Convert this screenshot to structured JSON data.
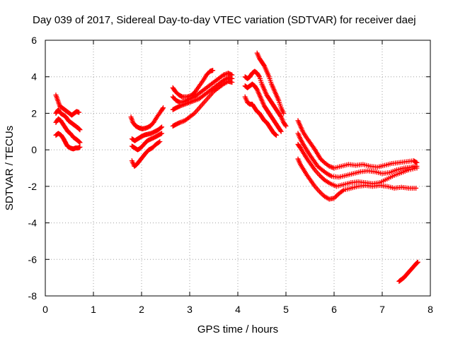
{
  "chart_data": {
    "type": "scatter",
    "title": "Day 039 of 2017, Sidereal Day-to-day VTEC variation (SDTVAR) for receiver daej",
    "xlabel": "GPS time / hours",
    "ylabel": "SDTVAR / TECUs",
    "xlim": [
      0,
      8
    ],
    "ylim": [
      -8,
      6
    ],
    "x_ticks": [
      "0",
      "1",
      "2",
      "3",
      "4",
      "5",
      "6",
      "7",
      "8"
    ],
    "y_ticks": [
      "-8",
      "-6",
      "-4",
      "-2",
      "0",
      "2",
      "4",
      "6"
    ],
    "grid": true,
    "marker": "+",
    "color": "#ff0000",
    "series": [
      {
        "points": [
          [
            0.22,
            3.0
          ],
          [
            0.26,
            2.7
          ],
          [
            0.3,
            2.4
          ],
          [
            0.35,
            2.3
          ],
          [
            0.4,
            2.2
          ],
          [
            0.45,
            2.1
          ],
          [
            0.5,
            2.0
          ],
          [
            0.55,
            1.9
          ],
          [
            0.6,
            2.0
          ],
          [
            0.65,
            2.1
          ],
          [
            0.7,
            2.05
          ]
        ]
      },
      {
        "points": [
          [
            0.22,
            2.0
          ],
          [
            0.27,
            2.2
          ],
          [
            0.32,
            2.0
          ],
          [
            0.38,
            1.9
          ],
          [
            0.43,
            1.8
          ],
          [
            0.48,
            1.6
          ],
          [
            0.53,
            1.5
          ],
          [
            0.58,
            1.4
          ],
          [
            0.63,
            1.3
          ],
          [
            0.68,
            1.2
          ],
          [
            0.72,
            1.1
          ]
        ]
      },
      {
        "points": [
          [
            0.22,
            1.5
          ],
          [
            0.27,
            1.7
          ],
          [
            0.32,
            1.6
          ],
          [
            0.37,
            1.4
          ],
          [
            0.42,
            1.2
          ],
          [
            0.47,
            1.0
          ],
          [
            0.52,
            0.9
          ],
          [
            0.58,
            0.7
          ],
          [
            0.63,
            0.6
          ],
          [
            0.68,
            0.5
          ],
          [
            0.72,
            0.4
          ]
        ]
      },
      {
        "points": [
          [
            0.22,
            0.8
          ],
          [
            0.27,
            0.9
          ],
          [
            0.33,
            0.8
          ],
          [
            0.38,
            0.6
          ],
          [
            0.42,
            0.4
          ],
          [
            0.46,
            0.2
          ],
          [
            0.52,
            0.1
          ],
          [
            0.58,
            0.05
          ],
          [
            0.63,
            0.1
          ],
          [
            0.68,
            0.1
          ],
          [
            0.72,
            0.15
          ]
        ]
      },
      {
        "points": [
          [
            1.78,
            1.8
          ],
          [
            1.82,
            1.5
          ],
          [
            1.88,
            1.3
          ],
          [
            1.95,
            1.2
          ],
          [
            2.02,
            1.15
          ],
          [
            2.1,
            1.2
          ],
          [
            2.18,
            1.3
          ],
          [
            2.25,
            1.5
          ],
          [
            2.32,
            1.8
          ],
          [
            2.4,
            2.1
          ],
          [
            2.45,
            2.3
          ]
        ]
      },
      {
        "points": [
          [
            1.8,
            0.6
          ],
          [
            1.86,
            0.5
          ],
          [
            1.92,
            0.6
          ],
          [
            1.98,
            0.7
          ],
          [
            2.05,
            0.8
          ],
          [
            2.12,
            0.85
          ],
          [
            2.2,
            0.9
          ],
          [
            2.28,
            1.0
          ],
          [
            2.35,
            1.1
          ],
          [
            2.42,
            1.25
          ]
        ]
      },
      {
        "points": [
          [
            1.8,
            0.2
          ],
          [
            1.86,
            0.1
          ],
          [
            1.92,
            0.0
          ],
          [
            1.98,
            0.1
          ],
          [
            2.05,
            0.3
          ],
          [
            2.12,
            0.5
          ],
          [
            2.2,
            0.6
          ],
          [
            2.28,
            0.7
          ],
          [
            2.35,
            0.8
          ],
          [
            2.42,
            0.9
          ]
        ]
      },
      {
        "points": [
          [
            1.8,
            -0.6
          ],
          [
            1.85,
            -0.9
          ],
          [
            1.9,
            -0.8
          ],
          [
            1.96,
            -0.6
          ],
          [
            2.02,
            -0.4
          ],
          [
            2.08,
            -0.2
          ],
          [
            2.15,
            0.0
          ],
          [
            2.22,
            0.1
          ],
          [
            2.3,
            0.3
          ],
          [
            2.38,
            0.45
          ]
        ]
      },
      {
        "points": [
          [
            2.65,
            3.4
          ],
          [
            2.7,
            3.2
          ],
          [
            2.78,
            3.0
          ],
          [
            2.85,
            2.9
          ],
          [
            2.95,
            2.9
          ],
          [
            3.05,
            3.0
          ],
          [
            3.12,
            3.2
          ],
          [
            3.2,
            3.5
          ],
          [
            3.28,
            3.8
          ],
          [
            3.35,
            4.1
          ],
          [
            3.42,
            4.3
          ],
          [
            3.48,
            4.35
          ]
        ]
      },
      {
        "points": [
          [
            2.65,
            2.9
          ],
          [
            2.72,
            2.7
          ],
          [
            2.8,
            2.6
          ],
          [
            2.9,
            2.65
          ],
          [
            3.0,
            2.8
          ],
          [
            3.1,
            2.9
          ],
          [
            3.2,
            3.1
          ],
          [
            3.3,
            3.3
          ],
          [
            3.4,
            3.5
          ],
          [
            3.5,
            3.7
          ],
          [
            3.6,
            3.9
          ],
          [
            3.7,
            4.1
          ],
          [
            3.8,
            4.2
          ],
          [
            3.88,
            4.1
          ]
        ]
      },
      {
        "points": [
          [
            2.65,
            2.2
          ],
          [
            2.72,
            2.3
          ],
          [
            2.8,
            2.4
          ],
          [
            2.9,
            2.5
          ],
          [
            3.0,
            2.6
          ],
          [
            3.1,
            2.7
          ],
          [
            3.2,
            2.8
          ],
          [
            3.3,
            3.0
          ],
          [
            3.4,
            3.2
          ],
          [
            3.5,
            3.4
          ],
          [
            3.6,
            3.6
          ],
          [
            3.7,
            3.8
          ],
          [
            3.8,
            3.95
          ],
          [
            3.88,
            3.9
          ]
        ]
      },
      {
        "points": [
          [
            2.65,
            1.3
          ],
          [
            2.72,
            1.4
          ],
          [
            2.8,
            1.5
          ],
          [
            2.9,
            1.6
          ],
          [
            3.0,
            1.8
          ],
          [
            3.1,
            2.0
          ],
          [
            3.2,
            2.3
          ],
          [
            3.3,
            2.6
          ],
          [
            3.4,
            2.9
          ],
          [
            3.5,
            3.2
          ],
          [
            3.6,
            3.4
          ],
          [
            3.7,
            3.6
          ],
          [
            3.8,
            3.75
          ],
          [
            3.88,
            3.7
          ]
        ]
      },
      {
        "points": [
          [
            4.4,
            5.3
          ],
          [
            4.45,
            5.0
          ],
          [
            4.5,
            4.8
          ],
          [
            4.55,
            4.6
          ],
          [
            4.6,
            4.3
          ],
          [
            4.65,
            4.0
          ],
          [
            4.7,
            3.6
          ],
          [
            4.75,
            3.3
          ],
          [
            4.8,
            3.0
          ],
          [
            4.85,
            2.7
          ],
          [
            4.9,
            2.3
          ],
          [
            4.95,
            2.0
          ]
        ]
      },
      {
        "points": [
          [
            4.15,
            4.0
          ],
          [
            4.2,
            3.9
          ],
          [
            4.25,
            4.0
          ],
          [
            4.3,
            4.2
          ],
          [
            4.35,
            4.3
          ],
          [
            4.4,
            4.2
          ],
          [
            4.45,
            4.0
          ],
          [
            4.5,
            3.6
          ],
          [
            4.55,
            3.3
          ],
          [
            4.6,
            3.0
          ],
          [
            4.65,
            2.8
          ],
          [
            4.7,
            2.6
          ],
          [
            4.75,
            2.4
          ],
          [
            4.8,
            2.2
          ],
          [
            4.85,
            2.0
          ],
          [
            4.9,
            1.8
          ],
          [
            4.95,
            1.5
          ],
          [
            5.0,
            1.3
          ]
        ]
      },
      {
        "points": [
          [
            4.15,
            3.5
          ],
          [
            4.2,
            3.4
          ],
          [
            4.25,
            3.5
          ],
          [
            4.3,
            3.6
          ],
          [
            4.35,
            3.5
          ],
          [
            4.4,
            3.3
          ],
          [
            4.45,
            3.0
          ],
          [
            4.5,
            2.7
          ],
          [
            4.55,
            2.4
          ],
          [
            4.6,
            2.2
          ],
          [
            4.65,
            2.0
          ],
          [
            4.7,
            1.8
          ],
          [
            4.75,
            1.6
          ],
          [
            4.8,
            1.4
          ],
          [
            4.85,
            1.2
          ],
          [
            4.9,
            1.0
          ]
        ]
      },
      {
        "points": [
          [
            4.15,
            2.9
          ],
          [
            4.2,
            2.6
          ],
          [
            4.25,
            2.5
          ],
          [
            4.3,
            2.5
          ],
          [
            4.35,
            2.3
          ],
          [
            4.4,
            2.1
          ],
          [
            4.45,
            2.0
          ],
          [
            4.5,
            1.8
          ],
          [
            4.55,
            1.6
          ],
          [
            4.6,
            1.5
          ],
          [
            4.65,
            1.3
          ],
          [
            4.7,
            1.1
          ],
          [
            4.75,
            0.9
          ],
          [
            4.8,
            0.8
          ]
        ]
      },
      {
        "points": [
          [
            5.25,
            1.6
          ],
          [
            5.3,
            1.3
          ],
          [
            5.35,
            1.0
          ],
          [
            5.42,
            0.7
          ],
          [
            5.5,
            0.4
          ],
          [
            5.58,
            0.1
          ],
          [
            5.65,
            -0.2
          ],
          [
            5.72,
            -0.5
          ],
          [
            5.8,
            -0.7
          ],
          [
            5.9,
            -0.9
          ],
          [
            6.0,
            -1.0
          ],
          [
            6.15,
            -0.9
          ],
          [
            6.3,
            -0.8
          ],
          [
            6.45,
            -0.85
          ],
          [
            6.6,
            -0.8
          ],
          [
            6.75,
            -0.9
          ],
          [
            6.9,
            -0.95
          ],
          [
            7.05,
            -0.85
          ],
          [
            7.2,
            -0.75
          ],
          [
            7.35,
            -0.7
          ],
          [
            7.5,
            -0.65
          ],
          [
            7.65,
            -0.6
          ],
          [
            7.72,
            -0.7
          ]
        ]
      },
      {
        "points": [
          [
            5.25,
            0.9
          ],
          [
            5.3,
            0.6
          ],
          [
            5.36,
            0.3
          ],
          [
            5.43,
            0.0
          ],
          [
            5.5,
            -0.3
          ],
          [
            5.58,
            -0.6
          ],
          [
            5.66,
            -0.9
          ],
          [
            5.75,
            -1.1
          ],
          [
            5.85,
            -1.3
          ],
          [
            5.95,
            -1.45
          ],
          [
            6.1,
            -1.5
          ],
          [
            6.25,
            -1.4
          ],
          [
            6.4,
            -1.3
          ],
          [
            6.55,
            -1.2
          ],
          [
            6.7,
            -1.15
          ],
          [
            6.85,
            -1.2
          ],
          [
            7.0,
            -1.3
          ],
          [
            7.15,
            -1.25
          ],
          [
            7.3,
            -1.1
          ],
          [
            7.45,
            -1.0
          ],
          [
            7.6,
            -0.95
          ],
          [
            7.72,
            -0.9
          ]
        ]
      },
      {
        "points": [
          [
            5.25,
            0.3
          ],
          [
            5.3,
            0.1
          ],
          [
            5.37,
            -0.2
          ],
          [
            5.44,
            -0.5
          ],
          [
            5.52,
            -0.8
          ],
          [
            5.6,
            -1.1
          ],
          [
            5.7,
            -1.4
          ],
          [
            5.8,
            -1.65
          ],
          [
            5.92,
            -1.85
          ],
          [
            6.05,
            -2.0
          ],
          [
            6.2,
            -1.9
          ],
          [
            6.35,
            -1.8
          ],
          [
            6.5,
            -1.75
          ],
          [
            6.65,
            -1.8
          ],
          [
            6.8,
            -1.85
          ],
          [
            6.95,
            -1.8
          ],
          [
            7.1,
            -1.6
          ],
          [
            7.25,
            -1.4
          ],
          [
            7.4,
            -1.25
          ],
          [
            7.55,
            -1.1
          ],
          [
            7.72,
            -1.0
          ]
        ]
      },
      {
        "points": [
          [
            5.25,
            -0.5
          ],
          [
            5.3,
            -0.8
          ],
          [
            5.37,
            -1.1
          ],
          [
            5.44,
            -1.4
          ],
          [
            5.52,
            -1.7
          ],
          [
            5.6,
            -2.0
          ],
          [
            5.7,
            -2.3
          ],
          [
            5.8,
            -2.55
          ],
          [
            5.9,
            -2.7
          ],
          [
            6.0,
            -2.65
          ],
          [
            6.1,
            -2.4
          ],
          [
            6.2,
            -2.2
          ],
          [
            6.35,
            -2.1
          ],
          [
            6.5,
            -2.0
          ],
          [
            6.65,
            -1.95
          ],
          [
            6.8,
            -2.0
          ],
          [
            6.95,
            -1.95
          ],
          [
            7.1,
            -2.0
          ],
          [
            7.25,
            -2.1
          ],
          [
            7.4,
            -2.05
          ],
          [
            7.55,
            -2.1
          ],
          [
            7.7,
            -2.1
          ]
        ]
      },
      {
        "points": [
          [
            7.35,
            -7.2
          ],
          [
            7.4,
            -7.1
          ],
          [
            7.45,
            -7.0
          ],
          [
            7.5,
            -6.85
          ],
          [
            7.55,
            -6.7
          ],
          [
            7.6,
            -6.55
          ],
          [
            7.65,
            -6.4
          ],
          [
            7.7,
            -6.25
          ],
          [
            7.74,
            -6.15
          ]
        ]
      }
    ]
  }
}
